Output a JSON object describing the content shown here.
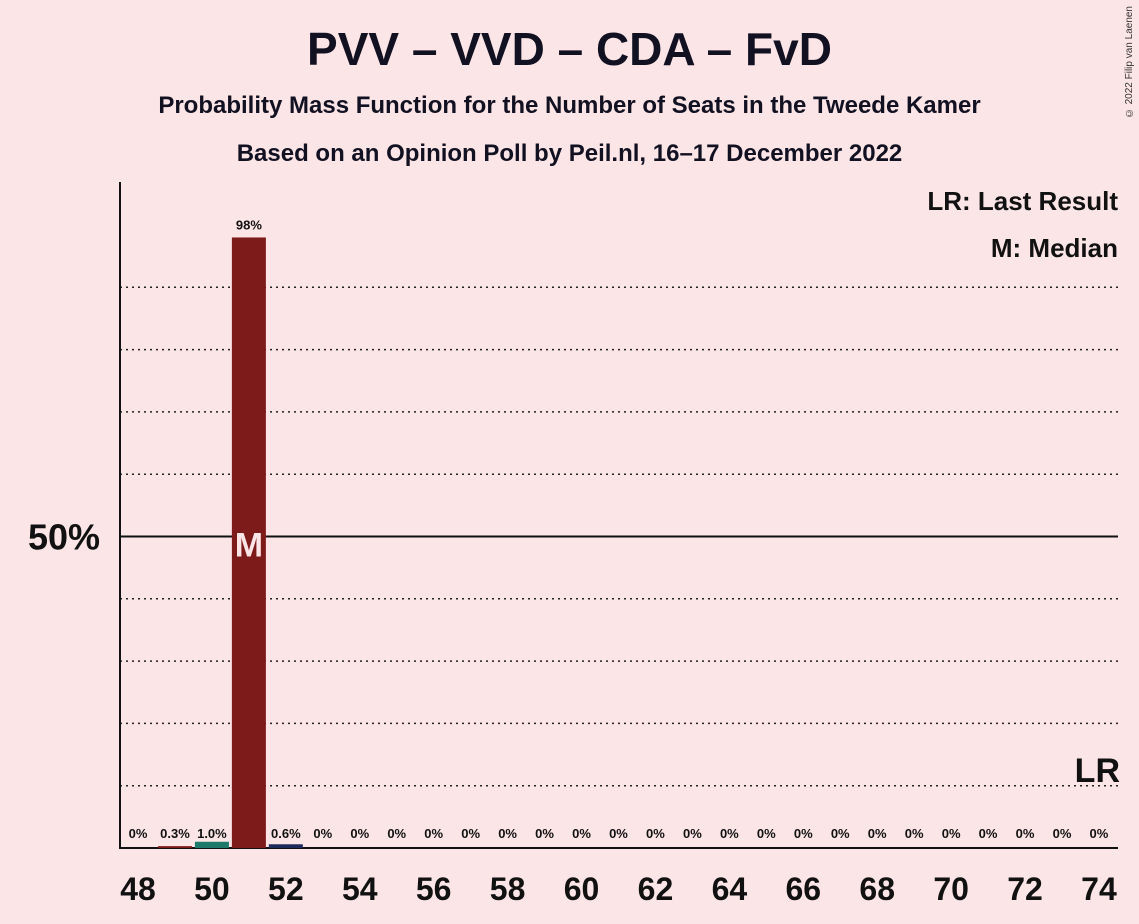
{
  "chart_data": {
    "type": "bar",
    "title": "PVV – VVD – CDA – FvD",
    "subtitle_line1": "Probability Mass Function for the Number of Seats in the Tweede Kamer",
    "subtitle_line2": "Based on an Opinion Poll by Peil.nl, 16–17 December 2022",
    "copyright": "© 2022 Filip van Laenen",
    "legend": {
      "last_result": "LR: Last Result",
      "median": "M: Median",
      "placement": "top-right"
    },
    "y_tick_label": "50%",
    "ylim": [
      0,
      1.0
    ],
    "x": [
      48,
      49,
      50,
      51,
      52,
      53,
      54,
      55,
      56,
      57,
      58,
      59,
      60,
      61,
      62,
      63,
      64,
      65,
      66,
      67,
      68,
      69,
      70,
      71,
      72,
      73,
      74
    ],
    "values": [
      0,
      0.003,
      0.01,
      0.98,
      0.006,
      0,
      0,
      0,
      0,
      0,
      0,
      0,
      0,
      0,
      0,
      0,
      0,
      0,
      0,
      0,
      0,
      0,
      0,
      0,
      0,
      0,
      0
    ],
    "labels": [
      "0%",
      "0.3%",
      "1.0%",
      "98%",
      "0.6%",
      "0%",
      "0%",
      "0%",
      "0%",
      "0%",
      "0%",
      "0%",
      "0%",
      "0%",
      "0%",
      "0%",
      "0%",
      "0%",
      "0%",
      "0%",
      "0%",
      "0%",
      "0%",
      "0%",
      "0%",
      "0%",
      "0%"
    ],
    "x_tick_labels": [
      "48",
      "50",
      "52",
      "54",
      "56",
      "58",
      "60",
      "62",
      "64",
      "66",
      "68",
      "70",
      "72",
      "74"
    ],
    "median_seat": 51,
    "median_marker": "M",
    "last_result_seat": 74,
    "last_result_marker": "LR",
    "colors": {
      "main": "#7D1A1A",
      "teal": "#1D7A6A",
      "navy": "#1E2A5A",
      "background": "#FCE5E6"
    },
    "grid": "dotted every 10%"
  }
}
